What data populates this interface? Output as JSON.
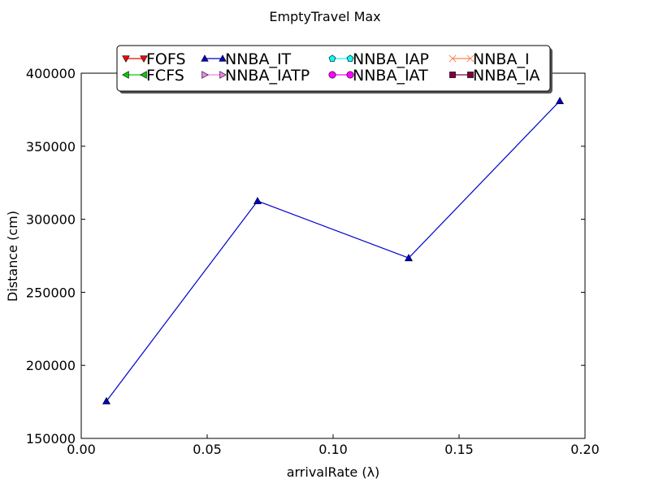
{
  "chart_data": {
    "type": "line",
    "title": "EmptyTravel Max",
    "xlabel": "arrivalRate (λ)",
    "ylabel": "Distance (cm)",
    "xlim": [
      0.0,
      0.2
    ],
    "ylim": [
      150000,
      400000
    ],
    "xticks": [
      "0.00",
      "0.05",
      "0.10",
      "0.15",
      "0.20"
    ],
    "yticks": [
      "150000",
      "200000",
      "250000",
      "300000",
      "350000",
      "400000"
    ],
    "grid": false,
    "legend_position": "top-center",
    "series": [
      {
        "name": "FOFS",
        "marker": "triangle-down",
        "color": "#ff0000",
        "x": [],
        "y": []
      },
      {
        "name": "FCFS",
        "marker": "triangle-left",
        "color": "#00cc00",
        "x": [],
        "y": []
      },
      {
        "name": "NNBA_IT",
        "marker": "triangle-up",
        "color": "#0000cc",
        "x": [
          0.01,
          0.07,
          0.13,
          0.19
        ],
        "y": [
          175500,
          312500,
          273500,
          381000
        ]
      },
      {
        "name": "NNBA_IATP",
        "marker": "triangle-right",
        "color": "#ee82ee",
        "x": [],
        "y": []
      },
      {
        "name": "NNBA_IAP",
        "marker": "pentagon",
        "color": "#00ffff",
        "x": [],
        "y": []
      },
      {
        "name": "NNBA_IAT",
        "marker": "circle",
        "color": "#ff00ff",
        "x": [],
        "y": []
      },
      {
        "name": "NNBA_I",
        "marker": "x",
        "color": "#ff7f50",
        "x": [],
        "y": []
      },
      {
        "name": "NNBA_IA",
        "marker": "square",
        "color": "#800040",
        "x": [],
        "y": []
      }
    ]
  }
}
